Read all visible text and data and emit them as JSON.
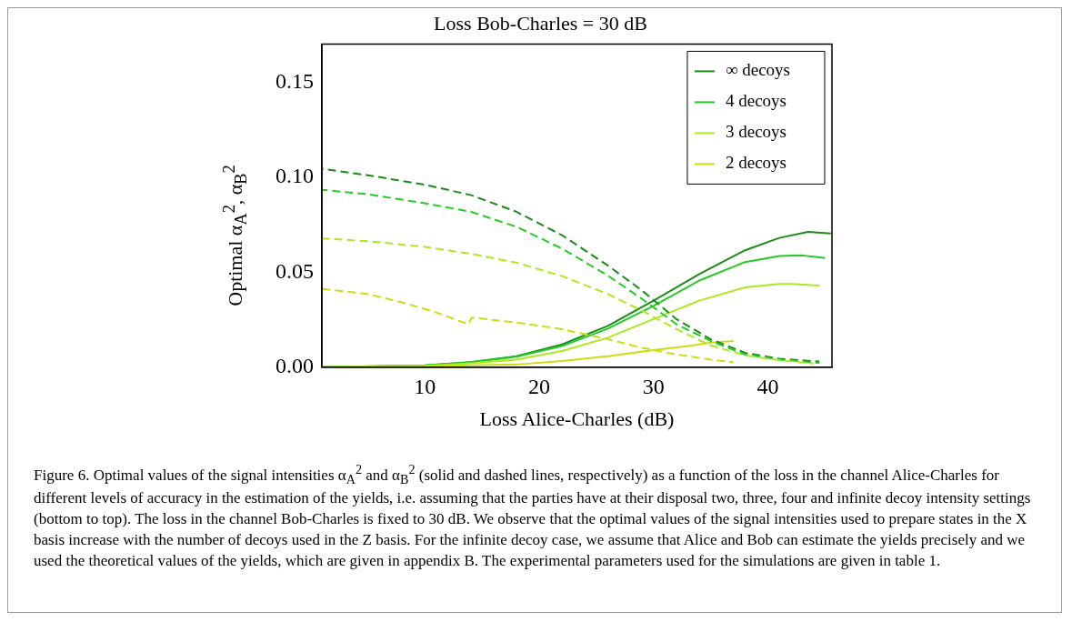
{
  "chart_data": {
    "type": "line",
    "title": "Loss Bob-Charles = 30 dB",
    "xlabel": "Loss Alice-Charles (dB)",
    "ylabel": "Optimal α$_{A}$$^{2}$, α$_{B}$$^{2}$",
    "xlim": [
      1,
      45.6
    ],
    "xticks": [
      10,
      20,
      30,
      40
    ],
    "ylim": [
      0,
      0.17
    ],
    "yticks": [
      {
        "value": 0,
        "label": "0.00"
      },
      {
        "value": 0.05,
        "label": "0.05"
      },
      {
        "value": 0.1,
        "label": "0.10"
      },
      {
        "value": 0.15,
        "label": "0.15"
      }
    ],
    "grid": false,
    "legend": "top right",
    "marker": "none",
    "series": [
      {
        "name": "∞ decoys",
        "color": "#1a8c1a",
        "line_style": "solid",
        "x": [
          1,
          10,
          14,
          18,
          22,
          26,
          30,
          34,
          38,
          41,
          43.5,
          45.5
        ],
        "values": [
          0,
          0.001,
          0.0027,
          0.0058,
          0.012,
          0.0217,
          0.035,
          0.049,
          0.0615,
          0.068,
          0.0712,
          0.0703
        ]
      },
      {
        "name": "4 decoys",
        "color": "#22cc22",
        "line_style": "solid",
        "x": [
          1,
          10,
          14,
          18,
          22,
          26,
          30,
          34,
          38,
          41,
          43,
          45
        ],
        "values": [
          0,
          0.001,
          0.0025,
          0.0055,
          0.0111,
          0.0203,
          0.0323,
          0.0456,
          0.0553,
          0.0585,
          0.0588,
          0.0574
        ]
      },
      {
        "name": "3 decoys",
        "color": "#aaea1e",
        "line_style": "solid",
        "x": [
          1,
          10,
          14,
          18,
          22,
          26,
          30,
          34,
          38,
          41,
          42,
          44.5
        ],
        "values": [
          0,
          0.0008,
          0.002,
          0.004,
          0.0085,
          0.0155,
          0.0253,
          0.035,
          0.042,
          0.0438,
          0.0438,
          0.0429
        ]
      },
      {
        "name": "2 decoys",
        "color": "#ccdd10",
        "line_style": "solid",
        "x": [
          1,
          10,
          14,
          18,
          22,
          26,
          30,
          33,
          35,
          37
        ],
        "values": [
          0,
          0.0003,
          0.001,
          0.0014,
          0.0032,
          0.0058,
          0.009,
          0.0111,
          0.0129,
          0.0138
        ]
      },
      {
        "color": "#1a8c1a",
        "line_style": "dashed",
        "x": [
          1,
          5,
          10,
          14,
          18,
          22,
          26,
          29,
          32,
          35,
          38,
          41,
          44.5
        ],
        "values": [
          0.1044,
          0.101,
          0.096,
          0.0906,
          0.0818,
          0.0694,
          0.0535,
          0.0403,
          0.0253,
          0.0147,
          0.0076,
          0.0044,
          0.003
        ]
      },
      {
        "color": "#22cc22",
        "line_style": "dashed",
        "x": [
          1,
          5,
          10,
          14,
          18,
          22,
          26,
          29,
          32,
          35,
          38,
          41,
          44.5
        ],
        "values": [
          0.0933,
          0.091,
          0.0862,
          0.0818,
          0.0739,
          0.0624,
          0.0482,
          0.0359,
          0.0226,
          0.0138,
          0.0067,
          0.004,
          0.0023
        ]
      },
      {
        "color": "#aaea1e",
        "line_style": "dashed",
        "x": [
          1,
          5,
          10,
          14,
          18,
          22,
          26,
          29,
          32,
          35,
          38,
          41,
          44
        ],
        "values": [
          0.0677,
          0.0663,
          0.0633,
          0.0597,
          0.055,
          0.0479,
          0.0385,
          0.0297,
          0.02,
          0.0115,
          0.0062,
          0.0037,
          0.0019
        ]
      },
      {
        "color": "#ccdd10",
        "line_style": "dashed",
        "x": [
          1,
          5,
          8,
          11,
          13.8,
          14.1,
          18,
          22,
          26,
          29,
          32,
          35,
          37
        ],
        "values": [
          0.0412,
          0.0385,
          0.0341,
          0.0288,
          0.0226,
          0.0261,
          0.0235,
          0.02,
          0.0147,
          0.0102,
          0.0067,
          0.004,
          0.0027
        ]
      }
    ],
    "annotations": [
      "Figure 6. Optimal values of the signal intensities α$_{A}$$^{2}$ and α$_{B}$$^{2}$ (solid and dashed lines, respectively) as a function of the loss in the channel Alice-Charles for different levels of accuracy in the estimation of the yields, i.e. assuming that the parties have at their disposal two, three, four and infinite decoy intensity settings (bottom to top). The loss in the channel Bob-Charles is fixed to 30 dB. We observe that the optimal values of the signal intensities used to prepare states in the X basis increase with the number of decoys used in the Z basis. For the infinite decoy case, we assume that Alice and Bob can estimate the yields precisely and we used the theoretical values of the yields, which are given in appendix B. The experimental parameters used for the simulations are given in table 1."
    ]
  }
}
